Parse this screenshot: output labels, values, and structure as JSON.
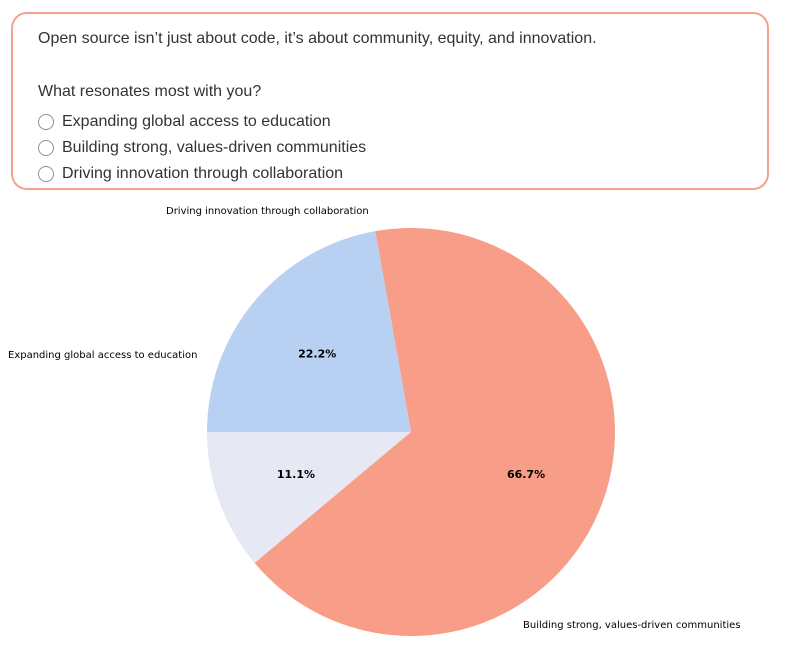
{
  "poll": {
    "intro": "Open source isn’t just about code, it’s about community, equity, and innovation.",
    "question": "What resonates most with you?",
    "options": [
      "Expanding global access to education",
      "Building strong, values-driven communities",
      "Driving innovation through collaboration"
    ]
  },
  "colors": {
    "card_border": "#f4a18f",
    "text": "#333333"
  },
  "chart_data": {
    "type": "pie",
    "start_angle_deg": 180,
    "direction": "counterclockwise",
    "slices": [
      {
        "label": "Expanding global access to education",
        "value": 11.1,
        "pct_label": "11.1%",
        "color": "#e6e9f3"
      },
      {
        "label": "Building strong, values-driven communities",
        "value": 66.7,
        "pct_label": "66.7%",
        "color": "#f89d88"
      },
      {
        "label": "Driving innovation through collaboration",
        "value": 22.2,
        "pct_label": "22.2%",
        "color": "#b8d1f3"
      }
    ]
  }
}
